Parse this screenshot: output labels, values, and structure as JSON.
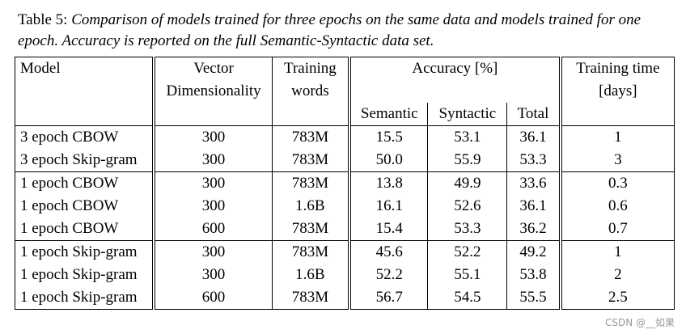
{
  "caption": {
    "label": "Table 5:",
    "text": "Comparison of models trained for three epochs on the same data and models trained for one epoch. Accuracy is reported on the full Semantic-Syntactic data set."
  },
  "table": {
    "headers": {
      "model": "Model",
      "vector_line1": "Vector",
      "vector_line2": "Dimensionality",
      "words_line1": "Training",
      "words_line2": "words",
      "accuracy": "Accuracy [%]",
      "time_line1": "Training time",
      "time_line2": "[days]",
      "semantic": "Semantic",
      "syntactic": "Syntactic",
      "total": "Total"
    },
    "rows": [
      {
        "model": "3 epoch CBOW",
        "dim": "300",
        "words": "783M",
        "semantic": "15.5",
        "syntactic": "53.1",
        "total": "36.1",
        "time": "1"
      },
      {
        "model": "3 epoch Skip-gram",
        "dim": "300",
        "words": "783M",
        "semantic": "50.0",
        "syntactic": "55.9",
        "total": "53.3",
        "time": "3"
      },
      {
        "model": "1 epoch CBOW",
        "dim": "300",
        "words": "783M",
        "semantic": "13.8",
        "syntactic": "49.9",
        "total": "33.6",
        "time": "0.3"
      },
      {
        "model": "1 epoch CBOW",
        "dim": "300",
        "words": "1.6B",
        "semantic": "16.1",
        "syntactic": "52.6",
        "total": "36.1",
        "time": "0.6"
      },
      {
        "model": "1 epoch CBOW",
        "dim": "600",
        "words": "783M",
        "semantic": "15.4",
        "syntactic": "53.3",
        "total": "36.2",
        "time": "0.7"
      },
      {
        "model": "1 epoch Skip-gram",
        "dim": "300",
        "words": "783M",
        "semantic": "45.6",
        "syntactic": "52.2",
        "total": "49.2",
        "time": "1"
      },
      {
        "model": "1 epoch Skip-gram",
        "dim": "300",
        "words": "1.6B",
        "semantic": "52.2",
        "syntactic": "55.1",
        "total": "53.8",
        "time": "2"
      },
      {
        "model": "1 epoch Skip-gram",
        "dim": "600",
        "words": "783M",
        "semantic": "56.7",
        "syntactic": "54.5",
        "total": "55.5",
        "time": "2.5"
      }
    ]
  },
  "watermark": "CSDN @__如果"
}
